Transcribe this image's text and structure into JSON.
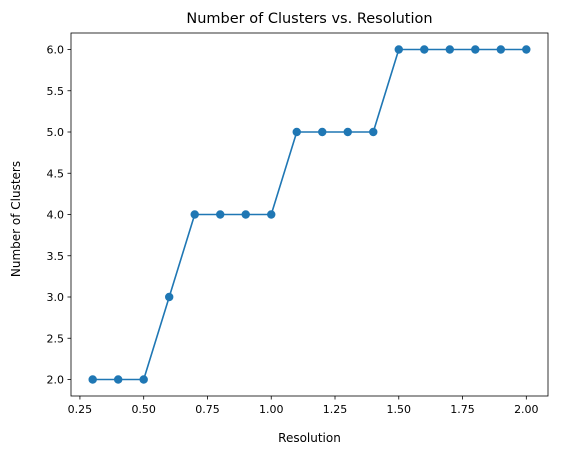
{
  "chart_data": {
    "type": "line",
    "title": "Number of Clusters vs. Resolution",
    "xlabel": "Resolution",
    "ylabel": "Number of Clusters",
    "xlim": [
      0.215,
      2.085
    ],
    "ylim": [
      1.8,
      6.2
    ],
    "x_ticks": [
      0.25,
      0.5,
      0.75,
      1.0,
      1.25,
      1.5,
      1.75,
      2.0
    ],
    "x_tick_labels": [
      "0.25",
      "0.50",
      "0.75",
      "1.00",
      "1.25",
      "1.50",
      "1.75",
      "2.00"
    ],
    "y_ticks": [
      2.0,
      2.5,
      3.0,
      3.5,
      4.0,
      4.5,
      5.0,
      5.5,
      6.0
    ],
    "y_tick_labels": [
      "2.0",
      "2.5",
      "3.0",
      "3.5",
      "4.0",
      "4.5",
      "5.0",
      "5.5",
      "6.0"
    ],
    "grid": false,
    "marker": "circle",
    "series": [
      {
        "color": "#1f77b4",
        "x": [
          0.3,
          0.4,
          0.5,
          0.6,
          0.7,
          0.8,
          0.9,
          1.0,
          1.1,
          1.2,
          1.3,
          1.4,
          1.5,
          1.6,
          1.7,
          1.8,
          1.9,
          2.0
        ],
        "values": [
          2,
          2,
          2,
          3,
          4,
          4,
          4,
          4,
          5,
          5,
          5,
          5,
          6,
          6,
          6,
          6,
          6,
          6
        ]
      }
    ]
  }
}
